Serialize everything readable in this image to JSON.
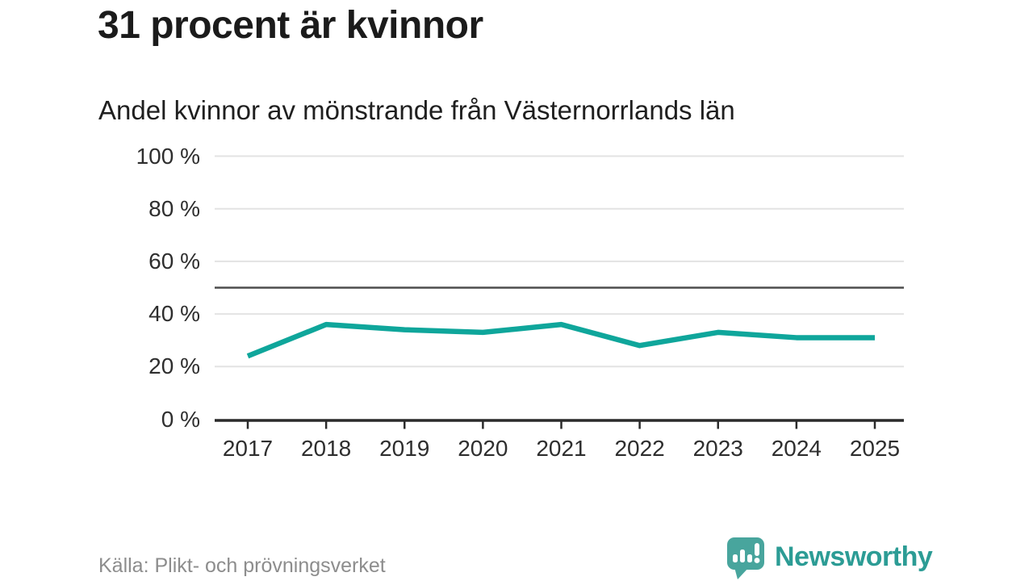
{
  "header": {
    "title": "31 procent är kvinnor",
    "subtitle": "Andel kvinnor av mönstrande från Västernorrlands län"
  },
  "footer": {
    "source": "Källa: Plikt- och prövningsverket",
    "brand": "Newsworthy"
  },
  "colors": {
    "line": "#0fa69b",
    "grid": "#e3e3e3",
    "reference_line": "#4d4d4d",
    "axis": "#2b2b2b",
    "tick_text": "#2e2e2e",
    "title_text": "#1b1b1b",
    "source_text": "#8d8d8d",
    "brand_icon": "#48a59d",
    "brand_text": "#2c9c95"
  },
  "chart_data": {
    "type": "line",
    "title": "31 procent är kvinnor",
    "subtitle": "Andel kvinnor av mönstrande från Västernorrlands län",
    "series_name": "Andel kvinnor av mönstrande",
    "categories": [
      "2017",
      "2018",
      "2019",
      "2020",
      "2021",
      "2022",
      "2023",
      "2024",
      "2025"
    ],
    "values": [
      24,
      36,
      34,
      33,
      36,
      28,
      33,
      31,
      31
    ],
    "unit": "%",
    "ylim": [
      0,
      100
    ],
    "yticks": [
      0,
      20,
      40,
      60,
      80,
      100
    ],
    "ytick_suffix": " %",
    "reference_line": 50,
    "grid": true,
    "legend": "none",
    "source": "Källa: Plikt- och prövningsverket"
  }
}
